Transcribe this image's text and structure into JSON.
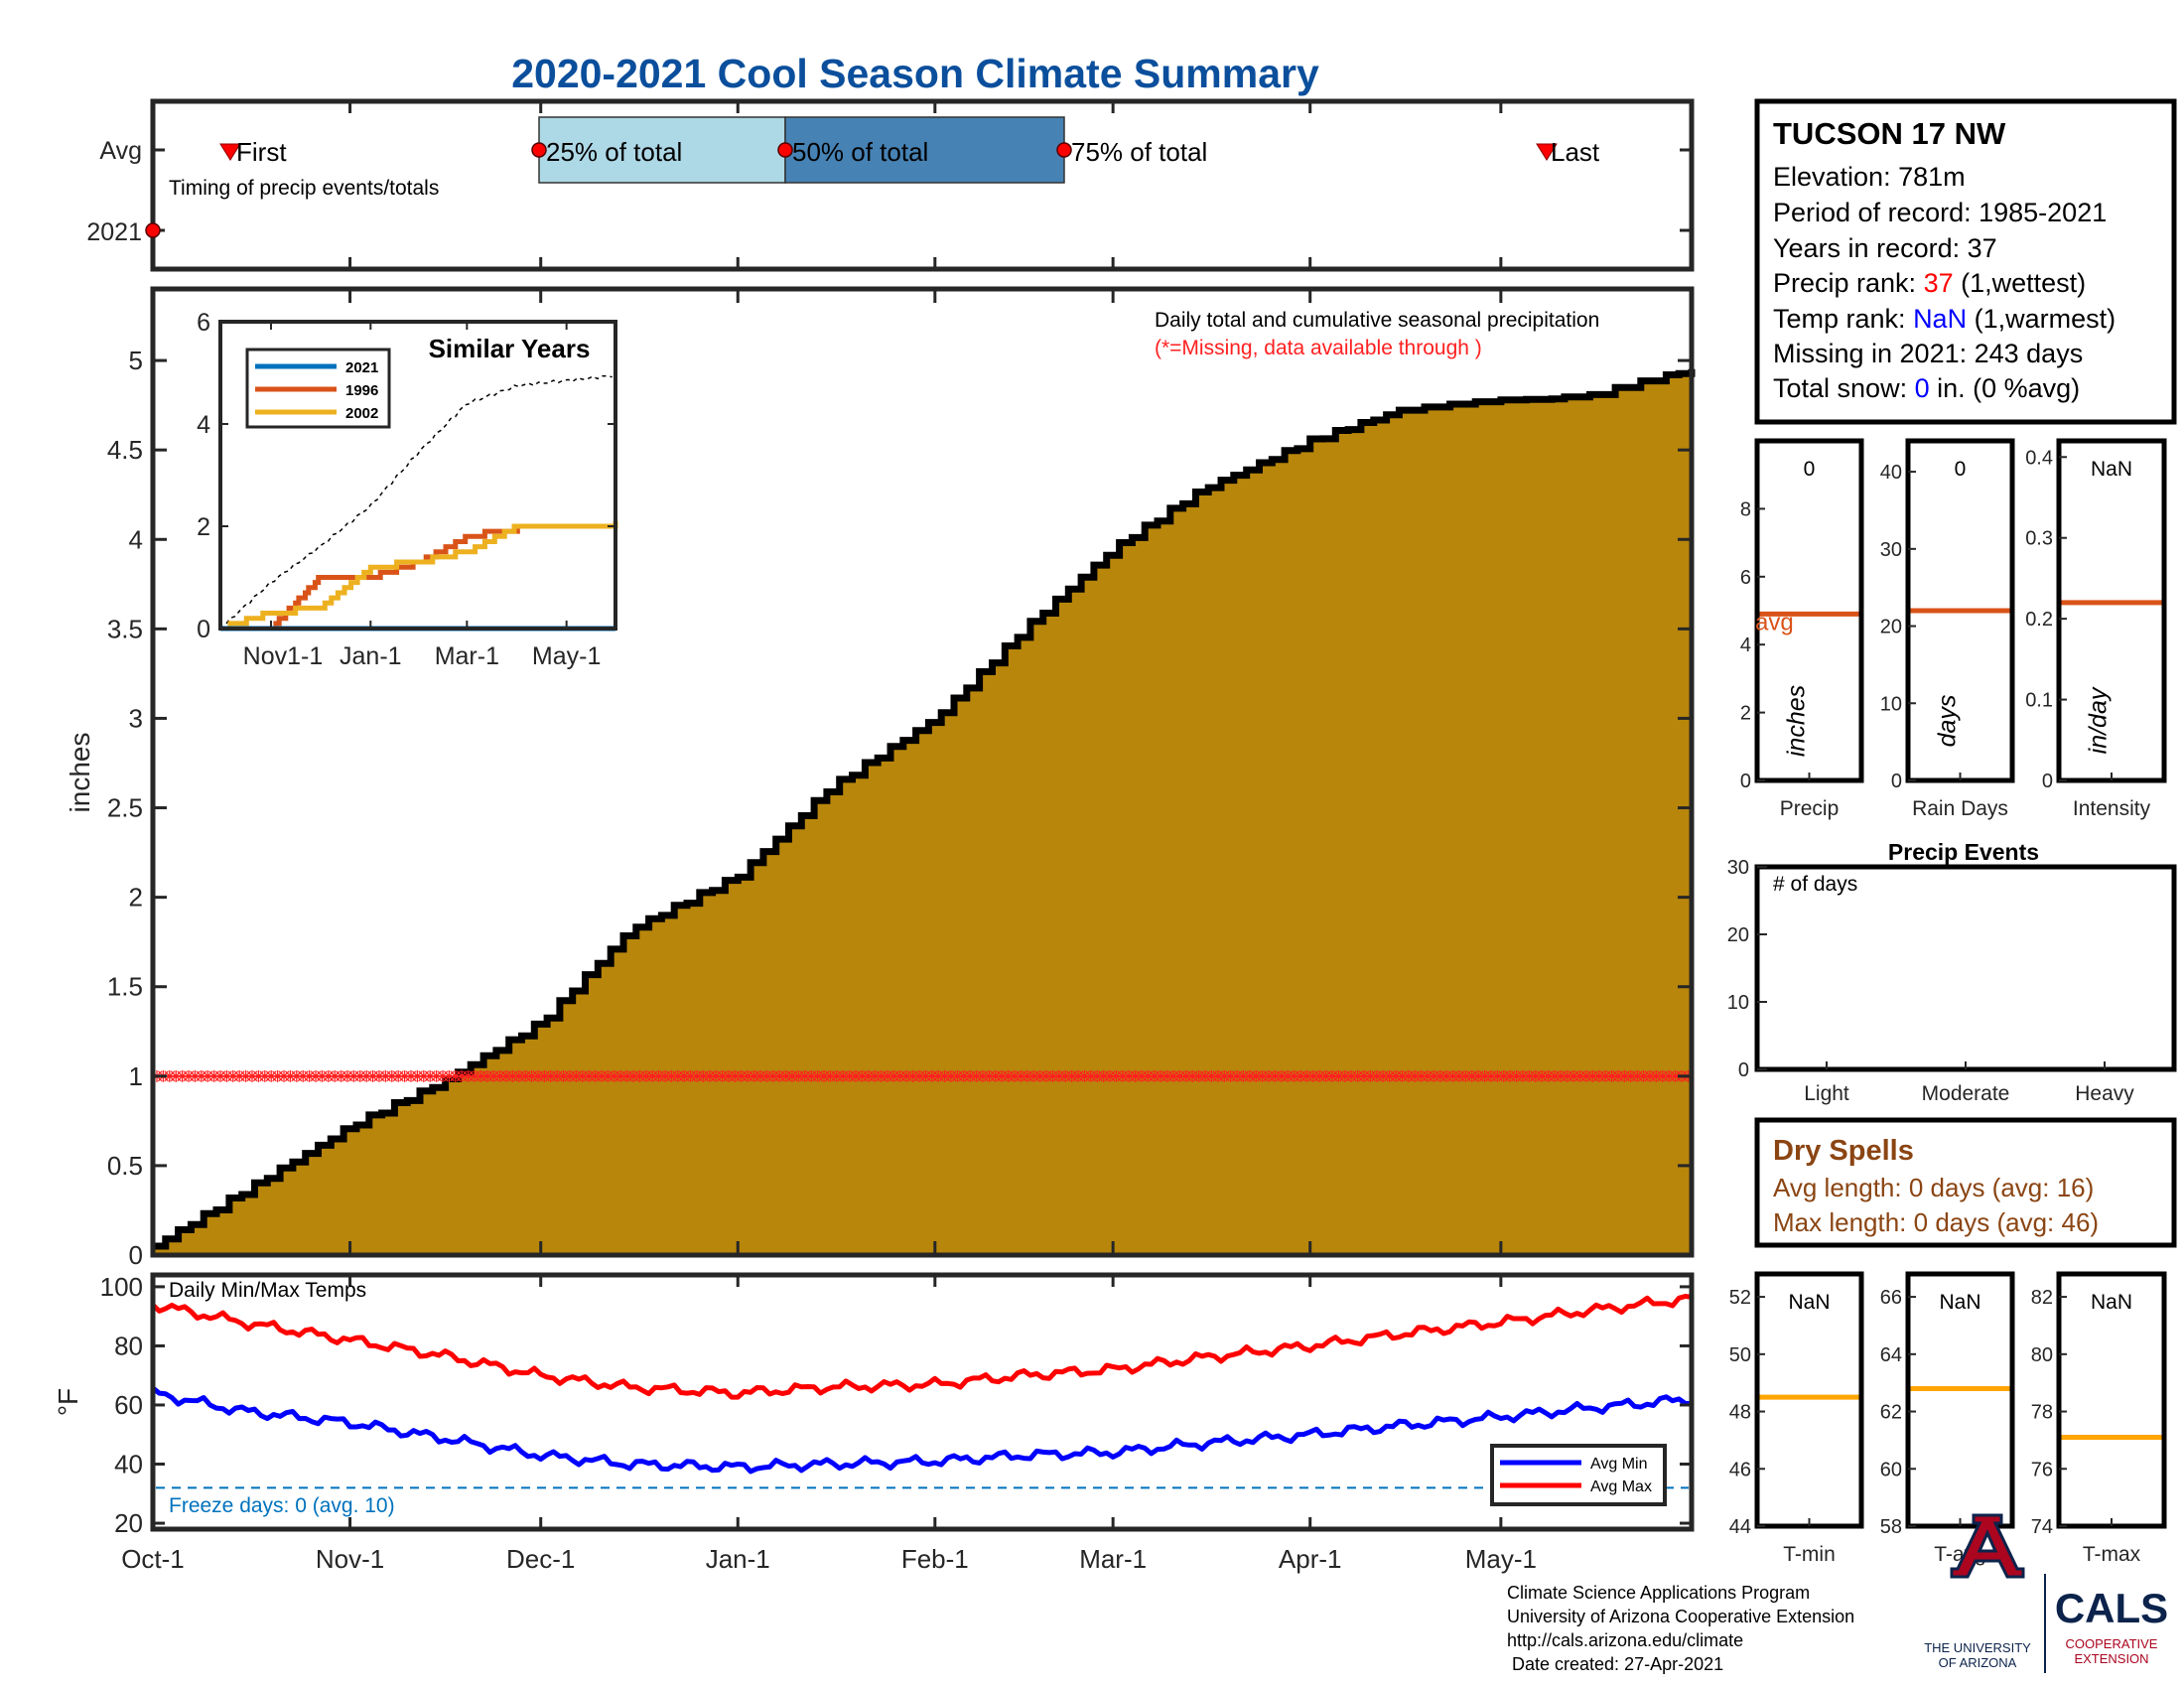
{
  "title": "2020-2021 Cool Season Climate Summary",
  "colors": {
    "title": "#0b4f9c",
    "precip_fill": "#b8860b",
    "precip_edge": "#000000",
    "missing": "#ff2020",
    "q_light": "#add8e6",
    "q_dark": "#4682b4",
    "avg_orange": "#d95319",
    "min_line": "#0000ff",
    "max_line": "#ff0000",
    "freeze": "#0072bd",
    "sim2021": "#0072bd",
    "sim1996": "#d95319",
    "sim2002": "#edb120",
    "temp_avg": "#ffa500",
    "dry": "#8b4513",
    "rank_red": "#ff0000",
    "rank_blue": "#0000ff",
    "logo_red": "#ab0520",
    "logo_navy": "#0c234b"
  },
  "timing": {
    "avg_label": "Avg",
    "year_label": "2021",
    "caption": "Timing of precip events/totals",
    "first_label": "First",
    "last_label": "Last",
    "q25_label": "25% of total",
    "q50_label": "50% of total",
    "q75_label": "75% of total"
  },
  "main": {
    "ylabel": "inches",
    "legend_line1": "Daily total and cumulative seasonal precipitation",
    "legend_line2": "(*=Missing, data available through )",
    "yticks": [
      "0",
      "0.5",
      "1",
      "1.5",
      "2",
      "2.5",
      "3",
      "3.5",
      "4",
      "4.5",
      "5"
    ],
    "xticks": [
      "Oct-1",
      "Nov-1",
      "Dec-1",
      "Jan-1",
      "Feb-1",
      "Mar-1",
      "Apr-1",
      "May-1"
    ]
  },
  "inset": {
    "title": "Similar Years",
    "yticks": [
      "0",
      "2",
      "4",
      "6"
    ],
    "xticks": [
      "Nov1-1",
      "Jan-1",
      "Mar-1",
      "May-1"
    ],
    "legend": [
      "2021",
      "1996",
      "2002"
    ]
  },
  "temps": {
    "title": "Daily Min/Max Temps",
    "ylabel": "°F",
    "yticks": [
      "20",
      "40",
      "60",
      "80",
      "100"
    ],
    "freeze_label": "Freeze days: 0 (avg. 10)",
    "legend_min": "Avg Min",
    "legend_max": "Avg Max"
  },
  "station": {
    "name": "TUCSON 17 NW",
    "elevation": "Elevation: 781m",
    "period": "Period of record: 1985-2021",
    "years": "Years in record: 37",
    "precip_rank_prefix": "Precip rank: ",
    "precip_rank_value": "37",
    "precip_rank_suffix": " (1,wettest)",
    "temp_rank_prefix": "Temp rank: ",
    "temp_rank_value": "NaN",
    "temp_rank_suffix": " (1,warmest)",
    "missing": "Missing in 2021: 243 days",
    "snow_prefix": "Total snow: ",
    "snow_value": "0",
    "snow_suffix": " in. (0 %avg)"
  },
  "bars": {
    "precip": {
      "label": "Precip",
      "unit": "inches",
      "value_text": "0",
      "avg_text": "avg",
      "yticks": [
        "0",
        "2",
        "4",
        "6",
        "8"
      ],
      "avg": 4.9
    },
    "rain_days": {
      "label": "Rain Days",
      "unit": "days",
      "value_text": "0",
      "yticks": [
        "0",
        "10",
        "20",
        "30",
        "40"
      ],
      "avg": 22
    },
    "intensity": {
      "label": "Intensity",
      "unit": "in/day",
      "value_text": "NaN",
      "yticks": [
        "0",
        "0.1",
        "0.2",
        "0.3",
        "0.4"
      ],
      "avg": 0.22
    }
  },
  "events": {
    "title": "Precip Events",
    "ylabel_inside": "# of days",
    "yticks": [
      "0",
      "10",
      "20",
      "30"
    ],
    "categories": [
      "Light",
      "Moderate",
      "Heavy"
    ]
  },
  "dry_spells": {
    "title": "Dry Spells",
    "avg_length": "Avg length: 0 days (avg: 16)",
    "max_length": "Max length: 0 days (avg: 46)"
  },
  "temp_bars": {
    "tmin": {
      "label": "T-min",
      "value_text": "NaN",
      "yticks": [
        "44",
        "46",
        "48",
        "50",
        "52"
      ],
      "avg": 48.5
    },
    "tavg": {
      "label": "T-avg",
      "value_text": "NaN",
      "yticks": [
        "58",
        "60",
        "62",
        "64",
        "66"
      ],
      "avg": 62.8
    },
    "tmax": {
      "label": "T-max",
      "value_text": "NaN",
      "yticks": [
        "74",
        "76",
        "78",
        "80",
        "82"
      ],
      "avg": 77.1
    }
  },
  "footer": {
    "line1": "Climate Science Applications Program",
    "line2": "University of Arizona Cooperative Extension",
    "line3": "http://cals.arizona.edu/climate",
    "line4": " Date created: 27-Apr-2021"
  },
  "logos": {
    "ua_line1": "THE UNIVERSITY",
    "ua_line2": "OF ARIZONA",
    "cals": "CALS",
    "cals_line1": "COOPERATIVE",
    "cals_line2": "EXTENSION"
  },
  "chart_data": [
    {
      "type": "area",
      "name": "cumulative_precip",
      "title": "2020-2021 Cool Season Climate Summary",
      "ylabel": "inches",
      "ylim": [
        0,
        5.4
      ],
      "x_dates": [
        "2020-10-01",
        "2020-10-15",
        "2020-11-01",
        "2020-11-15",
        "2020-12-01",
        "2020-12-15",
        "2021-01-01",
        "2021-01-15",
        "2021-02-01",
        "2021-02-15",
        "2021-03-01",
        "2021-03-15",
        "2021-04-01",
        "2021-04-15",
        "2021-05-01",
        "2021-05-15",
        "2021-05-31"
      ],
      "values": [
        0.05,
        0.35,
        0.72,
        0.96,
        1.3,
        1.82,
        2.12,
        2.6,
        3.0,
        3.5,
        3.95,
        4.28,
        4.55,
        4.72,
        4.77,
        4.8,
        4.95
      ],
      "missing_value": 1.0
    },
    {
      "type": "line",
      "name": "similar_years",
      "title": "Similar Years",
      "ylim": [
        0,
        6
      ],
      "x_dates": [
        "2020-10-01",
        "2020-11-01",
        "2020-12-01",
        "2021-01-01",
        "2021-02-01",
        "2021-03-01",
        "2021-04-01",
        "2021-05-31"
      ],
      "series": [
        {
          "name": "2021",
          "values": [
            0,
            0,
            0,
            0,
            0,
            0,
            0,
            0
          ]
        },
        {
          "name": "1996",
          "values": [
            0,
            0,
            1.0,
            1.0,
            1.3,
            1.8,
            1.95,
            2.0
          ]
        },
        {
          "name": "2002",
          "values": [
            0,
            0.3,
            0.4,
            1.2,
            1.3,
            1.5,
            2.0,
            2.05
          ]
        }
      ],
      "avg_values": [
        0,
        0.9,
        1.6,
        2.4,
        3.5,
        4.4,
        4.75,
        4.95
      ]
    },
    {
      "type": "line",
      "name": "daily_temps",
      "title": "Daily Min/Max Temps",
      "ylabel": "°F",
      "ylim": [
        18,
        104
      ],
      "x_dates": [
        "2020-10-01",
        "2020-10-15",
        "2020-11-01",
        "2020-11-15",
        "2020-12-01",
        "2020-12-15",
        "2021-01-01",
        "2021-01-15",
        "2021-02-01",
        "2021-02-15",
        "2021-03-01",
        "2021-03-15",
        "2021-04-01",
        "2021-04-15",
        "2021-05-01",
        "2021-05-15",
        "2021-05-31"
      ],
      "series": [
        {
          "name": "Avg Min",
          "values": [
            64,
            58,
            54,
            49,
            43,
            40,
            39,
            40,
            41,
            43,
            44,
            47,
            50,
            53,
            56,
            59,
            62
          ]
        },
        {
          "name": "Avg Max",
          "values": [
            94,
            88,
            82,
            77,
            70,
            66,
            64,
            66,
            67,
            70,
            72,
            76,
            80,
            84,
            88,
            92,
            96
          ]
        }
      ],
      "freeze_line": 32
    },
    {
      "type": "bar",
      "name": "season_totals",
      "categories": [
        "Precip",
        "Rain Days",
        "Intensity"
      ],
      "values": [
        0,
        0,
        null
      ],
      "averages": [
        4.9,
        22,
        0.22
      ]
    },
    {
      "type": "bar",
      "name": "precip_events",
      "title": "Precip Events",
      "categories": [
        "Light",
        "Moderate",
        "Heavy"
      ],
      "values": [
        0,
        0,
        0
      ],
      "ylim": [
        0,
        30
      ]
    },
    {
      "type": "bar",
      "name": "season_temps",
      "categories": [
        "T-min",
        "T-avg",
        "T-max"
      ],
      "values": [
        null,
        null,
        null
      ],
      "averages": [
        48.5,
        62.8,
        77.1
      ]
    }
  ]
}
